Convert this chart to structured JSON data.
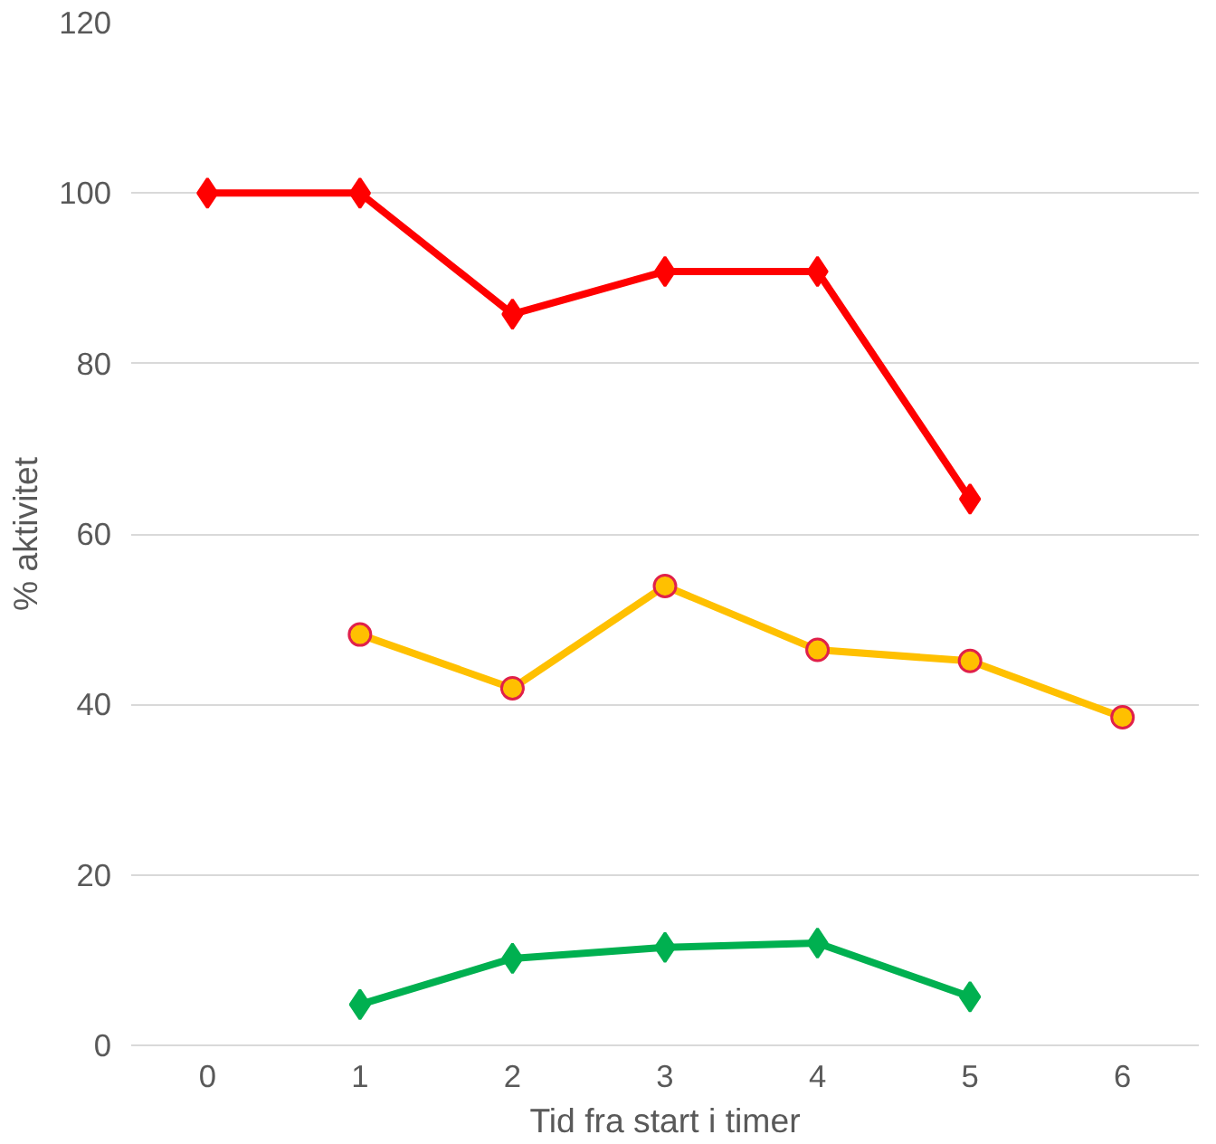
{
  "chart_data": {
    "type": "line",
    "xlabel": "Tid fra start i timer",
    "ylabel": "% aktivitet",
    "x": [
      0,
      1,
      2,
      3,
      4,
      5,
      6
    ],
    "xlim": [
      -0.5,
      6.5
    ],
    "xticks": [
      0,
      1,
      2,
      3,
      4,
      5,
      6
    ],
    "ylim": [
      0,
      120
    ],
    "yticks": [
      0,
      20,
      40,
      60,
      80,
      100,
      120
    ],
    "grid": "y",
    "line_style": "solid",
    "series": [
      {
        "color": "#ff0000",
        "marker": "diamond",
        "values": [
          100,
          100,
          85.8,
          90.8,
          90.8,
          64.1,
          null
        ]
      },
      {
        "color": "#ffc000",
        "marker": "circle",
        "values": [
          null,
          48.2,
          41.9,
          53.9,
          46.4,
          45.1,
          38.5
        ]
      },
      {
        "color": "#00b050",
        "marker": "diamond",
        "values": [
          null,
          4.8,
          10.2,
          11.5,
          12.0,
          5.7,
          null
        ]
      }
    ]
  }
}
